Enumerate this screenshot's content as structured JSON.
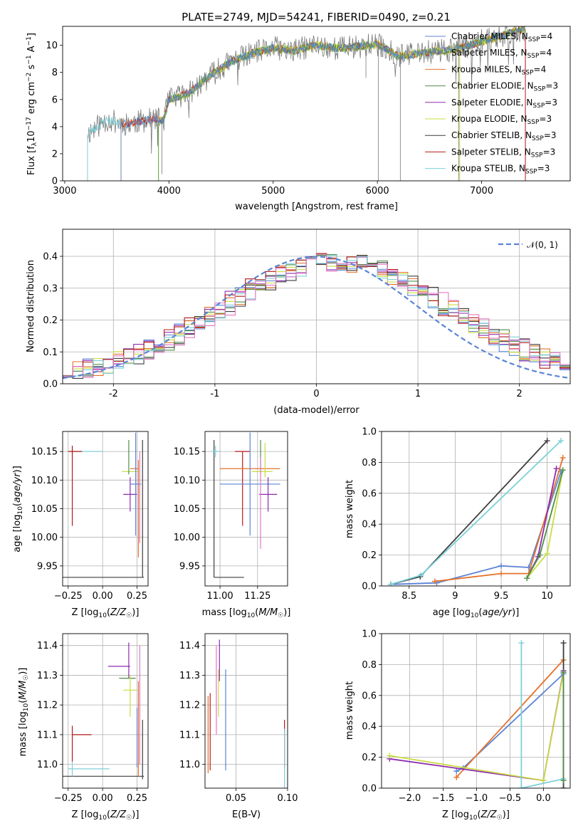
{
  "figure": {
    "title": "PLATE=2749, MJD=54241, FIBERID=0490, z=0.21"
  },
  "model_colors": {
    "Chabrier MILES": "#5b84d6",
    "Salpeter MILES": "#7a7a7a",
    "Kroupa MILES": "#e4722a",
    "Chabrier ELODIE": "#4f8f47",
    "Salpeter ELODIE": "#8e2bb0",
    "Kroupa ELODIE": "#c8dc42",
    "Chabrier STELIB": "#3d3d3d",
    "Salpeter STELIB": "#b21a1a",
    "Kroupa STELIB": "#7dd0d8",
    "pink": "#e377c2",
    "normal": "#5b84d6"
  },
  "chart_data": [
    {
      "id": "spectrum",
      "type": "line",
      "xlabel": "wavelength [Angstrom, rest frame]",
      "ylabel": "Flux [f_λ10^-17 erg cm^-2 s^-1 A^-1]",
      "xlim": [
        2980,
        7850
      ],
      "ylim": [
        0,
        11.4
      ],
      "xticks": [
        3000,
        4000,
        5000,
        6000,
        7000
      ],
      "yticks": [
        0,
        2,
        4,
        6,
        8,
        10
      ],
      "grid": false,
      "legend_position": "right",
      "legend": [
        "Chabrier MILES, N_SSP=4",
        "Salpeter MILES, N_SSP=4",
        "Kroupa MILES, N_SSP=4",
        "Chabrier ELODIE, N_SSP=3",
        "Salpeter ELODIE, N_SSP=3",
        "Kroupa ELODIE, N_SSP=3",
        "Chabrier STELIB, N_SSP=3",
        "Salpeter STELIB, N_SSP=3",
        "Kroupa STELIB, N_SSP=3"
      ],
      "envelope": {
        "x": [
          3220,
          3400,
          3600,
          3800,
          3950,
          4000,
          4200,
          4400,
          4600,
          4800,
          5000,
          5200,
          5400,
          5600,
          5800,
          6000,
          6200,
          6400,
          6600,
          6800,
          7000,
          7200,
          7400
        ],
        "y": [
          3.5,
          4.5,
          4.2,
          4.5,
          4.5,
          6.0,
          6.5,
          7.8,
          8.8,
          9.4,
          9.8,
          9.6,
          10.0,
          9.8,
          9.9,
          10.1,
          9.2,
          9.4,
          9.6,
          9.8,
          10.3,
          10.7,
          11.2
        ]
      }
    },
    {
      "id": "residual-hist",
      "type": "step",
      "xlabel": "(data-model)/error",
      "ylabel": "Normed distribution",
      "xlim": [
        -2.5,
        2.5
      ],
      "ylim": [
        0,
        0.485
      ],
      "xticks": [
        -2,
        -1,
        0,
        1,
        2
      ],
      "yticks": [
        0.0,
        0.1,
        0.2,
        0.3,
        0.4
      ],
      "grid": true,
      "legend_position": "top-right",
      "normal_label": "N(0,1)"
    },
    {
      "id": "age-vs-Z",
      "type": "errorbar",
      "xlabel": "Z [log10(Z/Z☉)]",
      "ylabel": "age [log10(age/yr)]",
      "xlim": [
        -0.29,
        0.33
      ],
      "ylim": [
        9.915,
        10.185
      ],
      "xticks": [
        -0.25,
        0.0,
        0.25
      ],
      "xticklabels": [
        "−0.25",
        "0.00",
        "0.25"
      ],
      "yticks": [
        9.95,
        10.0,
        10.05,
        10.1,
        10.15
      ],
      "grid": true
    },
    {
      "id": "age-vs-mass",
      "type": "errorbar",
      "xlabel": "mass [log10(M/M☉)]",
      "ylabel": "",
      "xlim": [
        10.9,
        11.45
      ],
      "ylim": [
        9.915,
        10.185
      ],
      "xticks": [
        11.0,
        11.25
      ],
      "xticklabels": [
        "11.00",
        "11.25"
      ],
      "yticks": [
        9.95,
        10.0,
        10.05,
        10.1,
        10.15
      ],
      "grid": true
    },
    {
      "id": "massweight-vs-age",
      "type": "line",
      "xlabel": "age log10(age/yr)",
      "ylabel": "mass weight",
      "xlim": [
        8.2,
        10.25
      ],
      "ylim": [
        0,
        1.0
      ],
      "xticks": [
        8.5,
        9.0,
        9.5,
        10.0
      ],
      "yticks": [
        0.0,
        0.2,
        0.4,
        0.6,
        0.8,
        1.0
      ],
      "grid": true,
      "series": [
        {
          "model": "Chabrier MILES",
          "x": [
            8.3,
            8.8,
            9.5,
            9.8,
            10.15
          ],
          "y": [
            0.01,
            0.02,
            0.13,
            0.12,
            0.74
          ]
        },
        {
          "model": "Kroupa MILES",
          "x": [
            8.78,
            9.5,
            9.8,
            10.17
          ],
          "y": [
            0.03,
            0.08,
            0.08,
            0.83
          ]
        },
        {
          "model": "Chabrier STELIB",
          "x": [
            8.3,
            8.62,
            10.0
          ],
          "y": [
            0.01,
            0.06,
            0.94
          ]
        },
        {
          "model": "Kroupa STELIB",
          "x": [
            8.3,
            8.63,
            10.15
          ],
          "y": [
            0.01,
            0.07,
            0.94
          ]
        },
        {
          "model": "Salpeter ELODIE",
          "x": [
            9.78,
            9.9,
            10.1
          ],
          "y": [
            0.05,
            0.19,
            0.76
          ]
        },
        {
          "model": "Kroupa ELODIE",
          "x": [
            9.78,
            10.0,
            10.17
          ],
          "y": [
            0.05,
            0.21,
            0.75
          ]
        },
        {
          "model": "Chabrier ELODIE",
          "x": [
            9.78,
            9.92,
            10.17
          ],
          "y": [
            0.05,
            0.2,
            0.75
          ]
        }
      ]
    },
    {
      "id": "mass-vs-Z",
      "type": "errorbar",
      "xlabel": "Z [log10(Z/Z☉)]",
      "ylabel": "mass [log10(M/M☉)]",
      "xlim": [
        -0.29,
        0.33
      ],
      "ylim": [
        10.92,
        11.44
      ],
      "xticks": [
        -0.25,
        0.0,
        0.25
      ],
      "xticklabels": [
        "−0.25",
        "0.00",
        "0.25"
      ],
      "yticks": [
        11.0,
        11.1,
        11.2,
        11.3,
        11.4
      ],
      "grid": true
    },
    {
      "id": "mass-vs-ebv",
      "type": "errorbar",
      "xlabel": "E(B-V)",
      "ylabel": "",
      "xlim": [
        0.02,
        0.1
      ],
      "ylim": [
        10.92,
        11.44
      ],
      "xticks": [
        0.05,
        0.1
      ],
      "xticklabels": [
        "0.05",
        "0.10"
      ],
      "yticks": [
        11.0,
        11.1,
        11.2,
        11.3,
        11.4
      ],
      "grid": true
    },
    {
      "id": "massweight-vs-Z",
      "type": "line",
      "xlabel": "Z [log10(Z/Z☉)]",
      "ylabel": "mass weight",
      "xlim": [
        -2.42,
        0.4
      ],
      "ylim": [
        0,
        1.0
      ],
      "xticks": [
        -2.0,
        -1.5,
        -1.0,
        -0.5,
        0.0
      ],
      "xticklabels": [
        "−2.0",
        "−1.5",
        "−1.0",
        "−0.5",
        "0.0"
      ],
      "yticks": [
        0.0,
        0.2,
        0.4,
        0.6,
        0.8,
        1.0
      ],
      "grid": true,
      "series": [
        {
          "model": "Chabrier MILES",
          "x": [
            -1.3,
            -1.2,
            0.3
          ],
          "y": [
            0.11,
            0.13,
            0.74
          ]
        },
        {
          "model": "Kroupa MILES",
          "x": [
            -1.3,
            0.3
          ],
          "y": [
            0.07,
            0.83
          ]
        },
        {
          "model": "Salpeter ELODIE",
          "x": [
            -2.3,
            0.0,
            0.3
          ],
          "y": [
            0.19,
            0.05,
            0.76
          ]
        },
        {
          "model": "Kroupa ELODIE",
          "x": [
            -2.3,
            0.0,
            0.3
          ],
          "y": [
            0.21,
            0.05,
            0.75
          ]
        },
        {
          "model": "Kroupa STELIB",
          "x": [
            -0.33,
            -0.33,
            0.3
          ],
          "y": [
            0.94,
            0.0,
            0.06
          ]
        },
        {
          "model": "Chabrier STELIB",
          "x": [
            0.3,
            0.3
          ],
          "y": [
            0.94,
            0.0
          ]
        },
        {
          "model": "Chabrier ELODIE",
          "x": [
            0.3,
            0.3
          ],
          "y": [
            0.75,
            0.05
          ]
        }
      ]
    }
  ]
}
